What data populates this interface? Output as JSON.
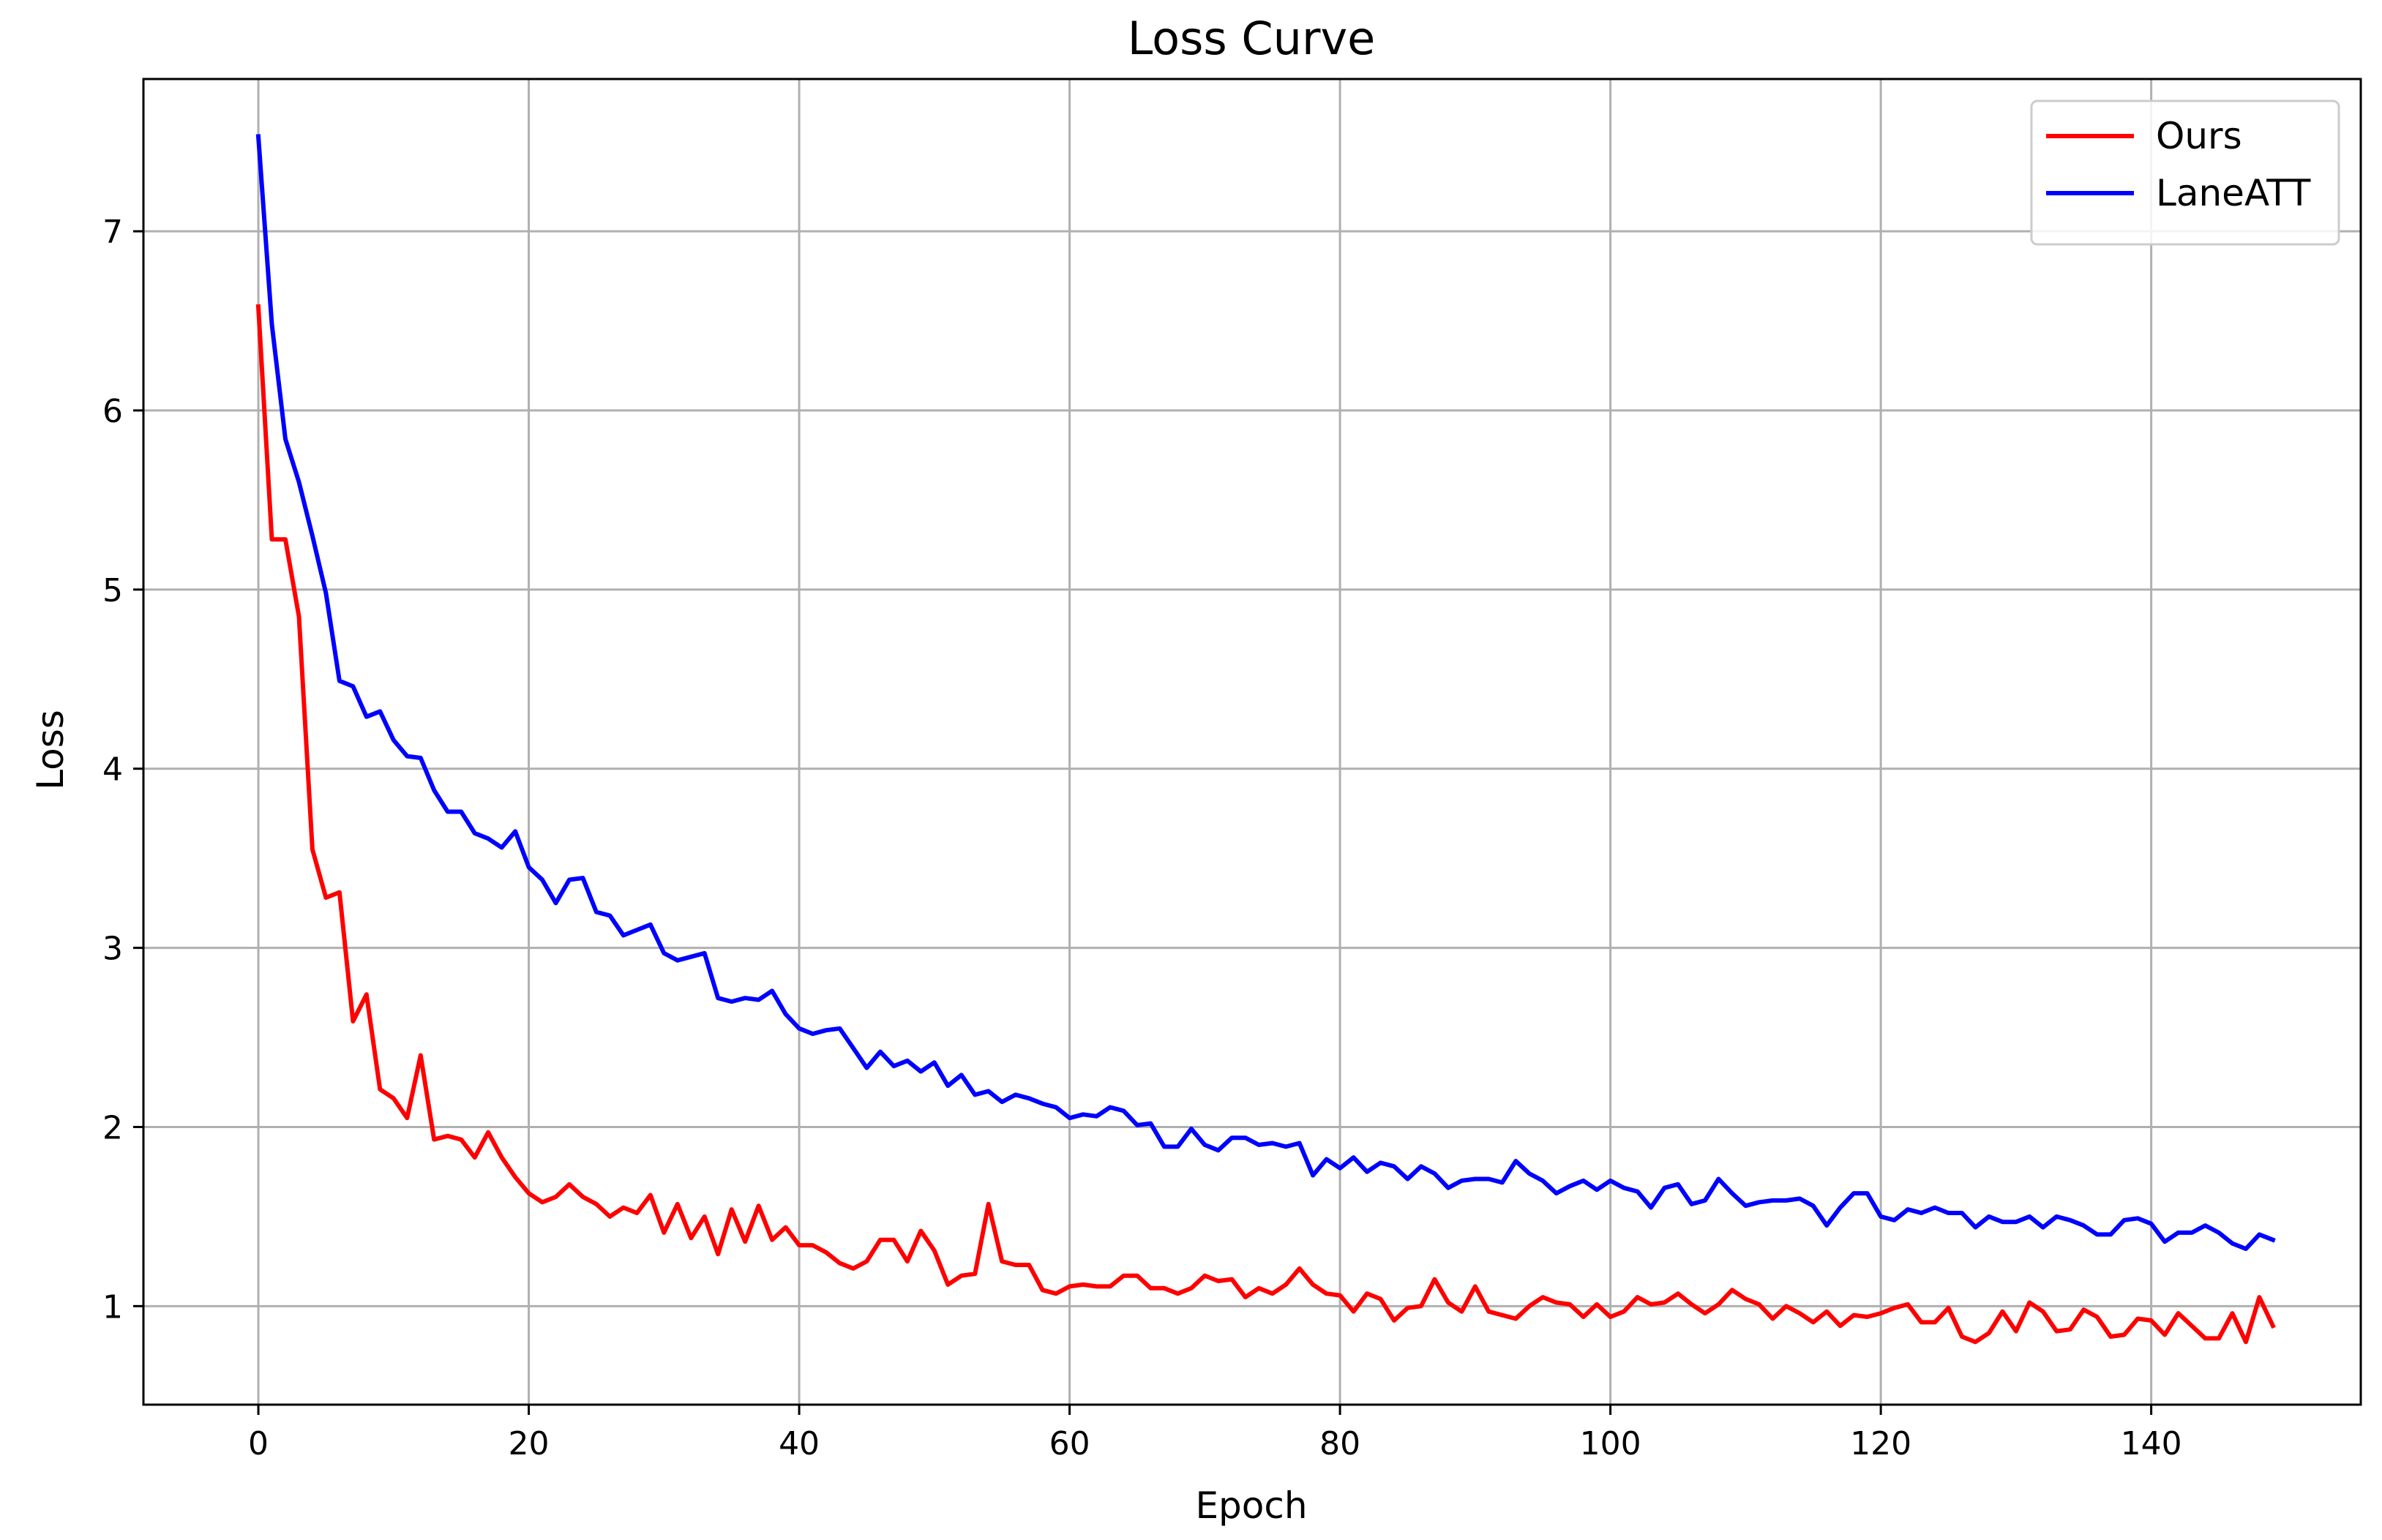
{
  "chart_data": {
    "type": "line",
    "title": "Loss Curve",
    "xlabel": "Epoch",
    "ylabel": "Loss",
    "xlim": [
      -8.5,
      155.5
    ],
    "ylim": [
      0.45,
      7.85
    ],
    "xticks": [
      0,
      20,
      40,
      60,
      80,
      100,
      120,
      140
    ],
    "yticks": [
      1,
      2,
      3,
      4,
      5,
      6,
      7
    ],
    "grid": true,
    "legend_position": "top-right",
    "series": [
      {
        "name": "Ours",
        "color": "#ff0000",
        "x": [
          0,
          1,
          2,
          3,
          4,
          5,
          6,
          7,
          8,
          9,
          10,
          11,
          12,
          13,
          14,
          15,
          16,
          17,
          18,
          19,
          20,
          21,
          22,
          23,
          24,
          25,
          26,
          27,
          28,
          29,
          30,
          31,
          32,
          33,
          34,
          35,
          36,
          37,
          38,
          39,
          40,
          41,
          42,
          43,
          44,
          45,
          46,
          47,
          48,
          49,
          50,
          51,
          52,
          53,
          54,
          55,
          56,
          57,
          58,
          59,
          60,
          61,
          62,
          63,
          64,
          65,
          66,
          67,
          68,
          69,
          70,
          71,
          72,
          73,
          74,
          75,
          76,
          77,
          78,
          79,
          80,
          81,
          82,
          83,
          84,
          85,
          86,
          87,
          88,
          89,
          90,
          91,
          92,
          93,
          94,
          95,
          96,
          97,
          98,
          99,
          100,
          101,
          102,
          103,
          104,
          105,
          106,
          107,
          108,
          109,
          110,
          111,
          112,
          113,
          114,
          115,
          116,
          117,
          118,
          119,
          120,
          121,
          122,
          123,
          124,
          125,
          126,
          127,
          128,
          129,
          130,
          131,
          132,
          133,
          134,
          135,
          136,
          137,
          138,
          139,
          140,
          141,
          142,
          143,
          144,
          145,
          146,
          147,
          148,
          149
        ],
        "values": [
          6.58,
          5.28,
          5.28,
          4.85,
          3.55,
          3.28,
          3.31,
          2.59,
          2.74,
          2.21,
          2.16,
          2.05,
          2.4,
          1.93,
          1.95,
          1.93,
          1.83,
          1.97,
          1.83,
          1.72,
          1.63,
          1.58,
          1.61,
          1.68,
          1.61,
          1.57,
          1.5,
          1.55,
          1.52,
          1.62,
          1.41,
          1.57,
          1.38,
          1.5,
          1.29,
          1.54,
          1.36,
          1.56,
          1.37,
          1.44,
          1.34,
          1.34,
          1.3,
          1.24,
          1.21,
          1.25,
          1.37,
          1.37,
          1.25,
          1.42,
          1.31,
          1.12,
          1.17,
          1.18,
          1.57,
          1.25,
          1.23,
          1.23,
          1.09,
          1.07,
          1.11,
          1.12,
          1.11,
          1.11,
          1.17,
          1.17,
          1.1,
          1.1,
          1.07,
          1.1,
          1.17,
          1.14,
          1.15,
          1.05,
          1.1,
          1.07,
          1.12,
          1.21,
          1.12,
          1.07,
          1.06,
          0.97,
          1.07,
          1.04,
          0.92,
          0.99,
          1.0,
          1.15,
          1.02,
          0.97,
          1.11,
          0.97,
          0.95,
          0.93,
          1.0,
          1.05,
          1.02,
          1.01,
          0.94,
          1.01,
          0.94,
          0.97,
          1.05,
          1.01,
          1.02,
          1.07,
          1.01,
          0.96,
          1.01,
          1.09,
          1.04,
          1.01,
          0.93,
          1.0,
          0.96,
          0.91,
          0.97,
          0.89,
          0.95,
          0.94,
          0.96,
          0.99,
          1.01,
          0.91,
          0.91,
          0.99,
          0.83,
          0.8,
          0.85,
          0.97,
          0.86,
          1.02,
          0.97,
          0.86,
          0.87,
          0.98,
          0.94,
          0.83,
          0.84,
          0.93,
          0.92,
          0.84,
          0.96,
          0.89,
          0.82,
          0.82,
          0.96,
          0.8,
          1.05,
          0.89
        ]
      },
      {
        "name": "LaneATT",
        "color": "#0000ff",
        "x": [
          0,
          1,
          2,
          3,
          4,
          5,
          6,
          7,
          8,
          9,
          10,
          11,
          12,
          13,
          14,
          15,
          16,
          17,
          18,
          19,
          20,
          21,
          22,
          23,
          24,
          25,
          26,
          27,
          28,
          29,
          30,
          31,
          32,
          33,
          34,
          35,
          36,
          37,
          38,
          39,
          40,
          41,
          42,
          43,
          44,
          45,
          46,
          47,
          48,
          49,
          50,
          51,
          52,
          53,
          54,
          55,
          56,
          57,
          58,
          59,
          60,
          61,
          62,
          63,
          64,
          65,
          66,
          67,
          68,
          69,
          70,
          71,
          72,
          73,
          74,
          75,
          76,
          77,
          78,
          79,
          80,
          81,
          82,
          83,
          84,
          85,
          86,
          87,
          88,
          89,
          90,
          91,
          92,
          93,
          94,
          95,
          96,
          97,
          98,
          99,
          100,
          101,
          102,
          103,
          104,
          105,
          106,
          107,
          108,
          109,
          110,
          111,
          112,
          113,
          114,
          115,
          116,
          117,
          118,
          119,
          120,
          121,
          122,
          123,
          124,
          125,
          126,
          127,
          128,
          129,
          130,
          131,
          132,
          133,
          134,
          135,
          136,
          137,
          138,
          139,
          140,
          141,
          142,
          143,
          144,
          145,
          146,
          147,
          148,
          149
        ],
        "values": [
          7.53,
          6.48,
          5.84,
          5.6,
          5.3,
          4.98,
          4.49,
          4.46,
          4.29,
          4.32,
          4.16,
          4.07,
          4.06,
          3.88,
          3.76,
          3.76,
          3.64,
          3.61,
          3.56,
          3.65,
          3.45,
          3.38,
          3.25,
          3.38,
          3.39,
          3.2,
          3.18,
          3.07,
          3.1,
          3.13,
          2.97,
          2.93,
          2.95,
          2.97,
          2.72,
          2.7,
          2.72,
          2.71,
          2.76,
          2.63,
          2.55,
          2.52,
          2.54,
          2.55,
          2.44,
          2.33,
          2.42,
          2.34,
          2.37,
          2.31,
          2.36,
          2.23,
          2.29,
          2.18,
          2.2,
          2.14,
          2.18,
          2.16,
          2.13,
          2.11,
          2.05,
          2.07,
          2.06,
          2.11,
          2.09,
          2.01,
          2.02,
          1.89,
          1.89,
          1.99,
          1.9,
          1.87,
          1.94,
          1.94,
          1.9,
          1.91,
          1.89,
          1.91,
          1.73,
          1.82,
          1.77,
          1.83,
          1.75,
          1.8,
          1.78,
          1.71,
          1.78,
          1.74,
          1.66,
          1.7,
          1.71,
          1.71,
          1.69,
          1.81,
          1.74,
          1.7,
          1.63,
          1.67,
          1.7,
          1.65,
          1.7,
          1.66,
          1.64,
          1.55,
          1.66,
          1.68,
          1.57,
          1.59,
          1.71,
          1.63,
          1.56,
          1.58,
          1.59,
          1.59,
          1.6,
          1.56,
          1.45,
          1.55,
          1.63,
          1.63,
          1.5,
          1.48,
          1.54,
          1.52,
          1.55,
          1.52,
          1.52,
          1.44,
          1.5,
          1.47,
          1.47,
          1.5,
          1.44,
          1.5,
          1.48,
          1.45,
          1.4,
          1.4,
          1.48,
          1.49,
          1.46,
          1.36,
          1.41,
          1.41,
          1.45,
          1.41,
          1.35,
          1.32,
          1.4,
          1.37
        ]
      }
    ]
  }
}
